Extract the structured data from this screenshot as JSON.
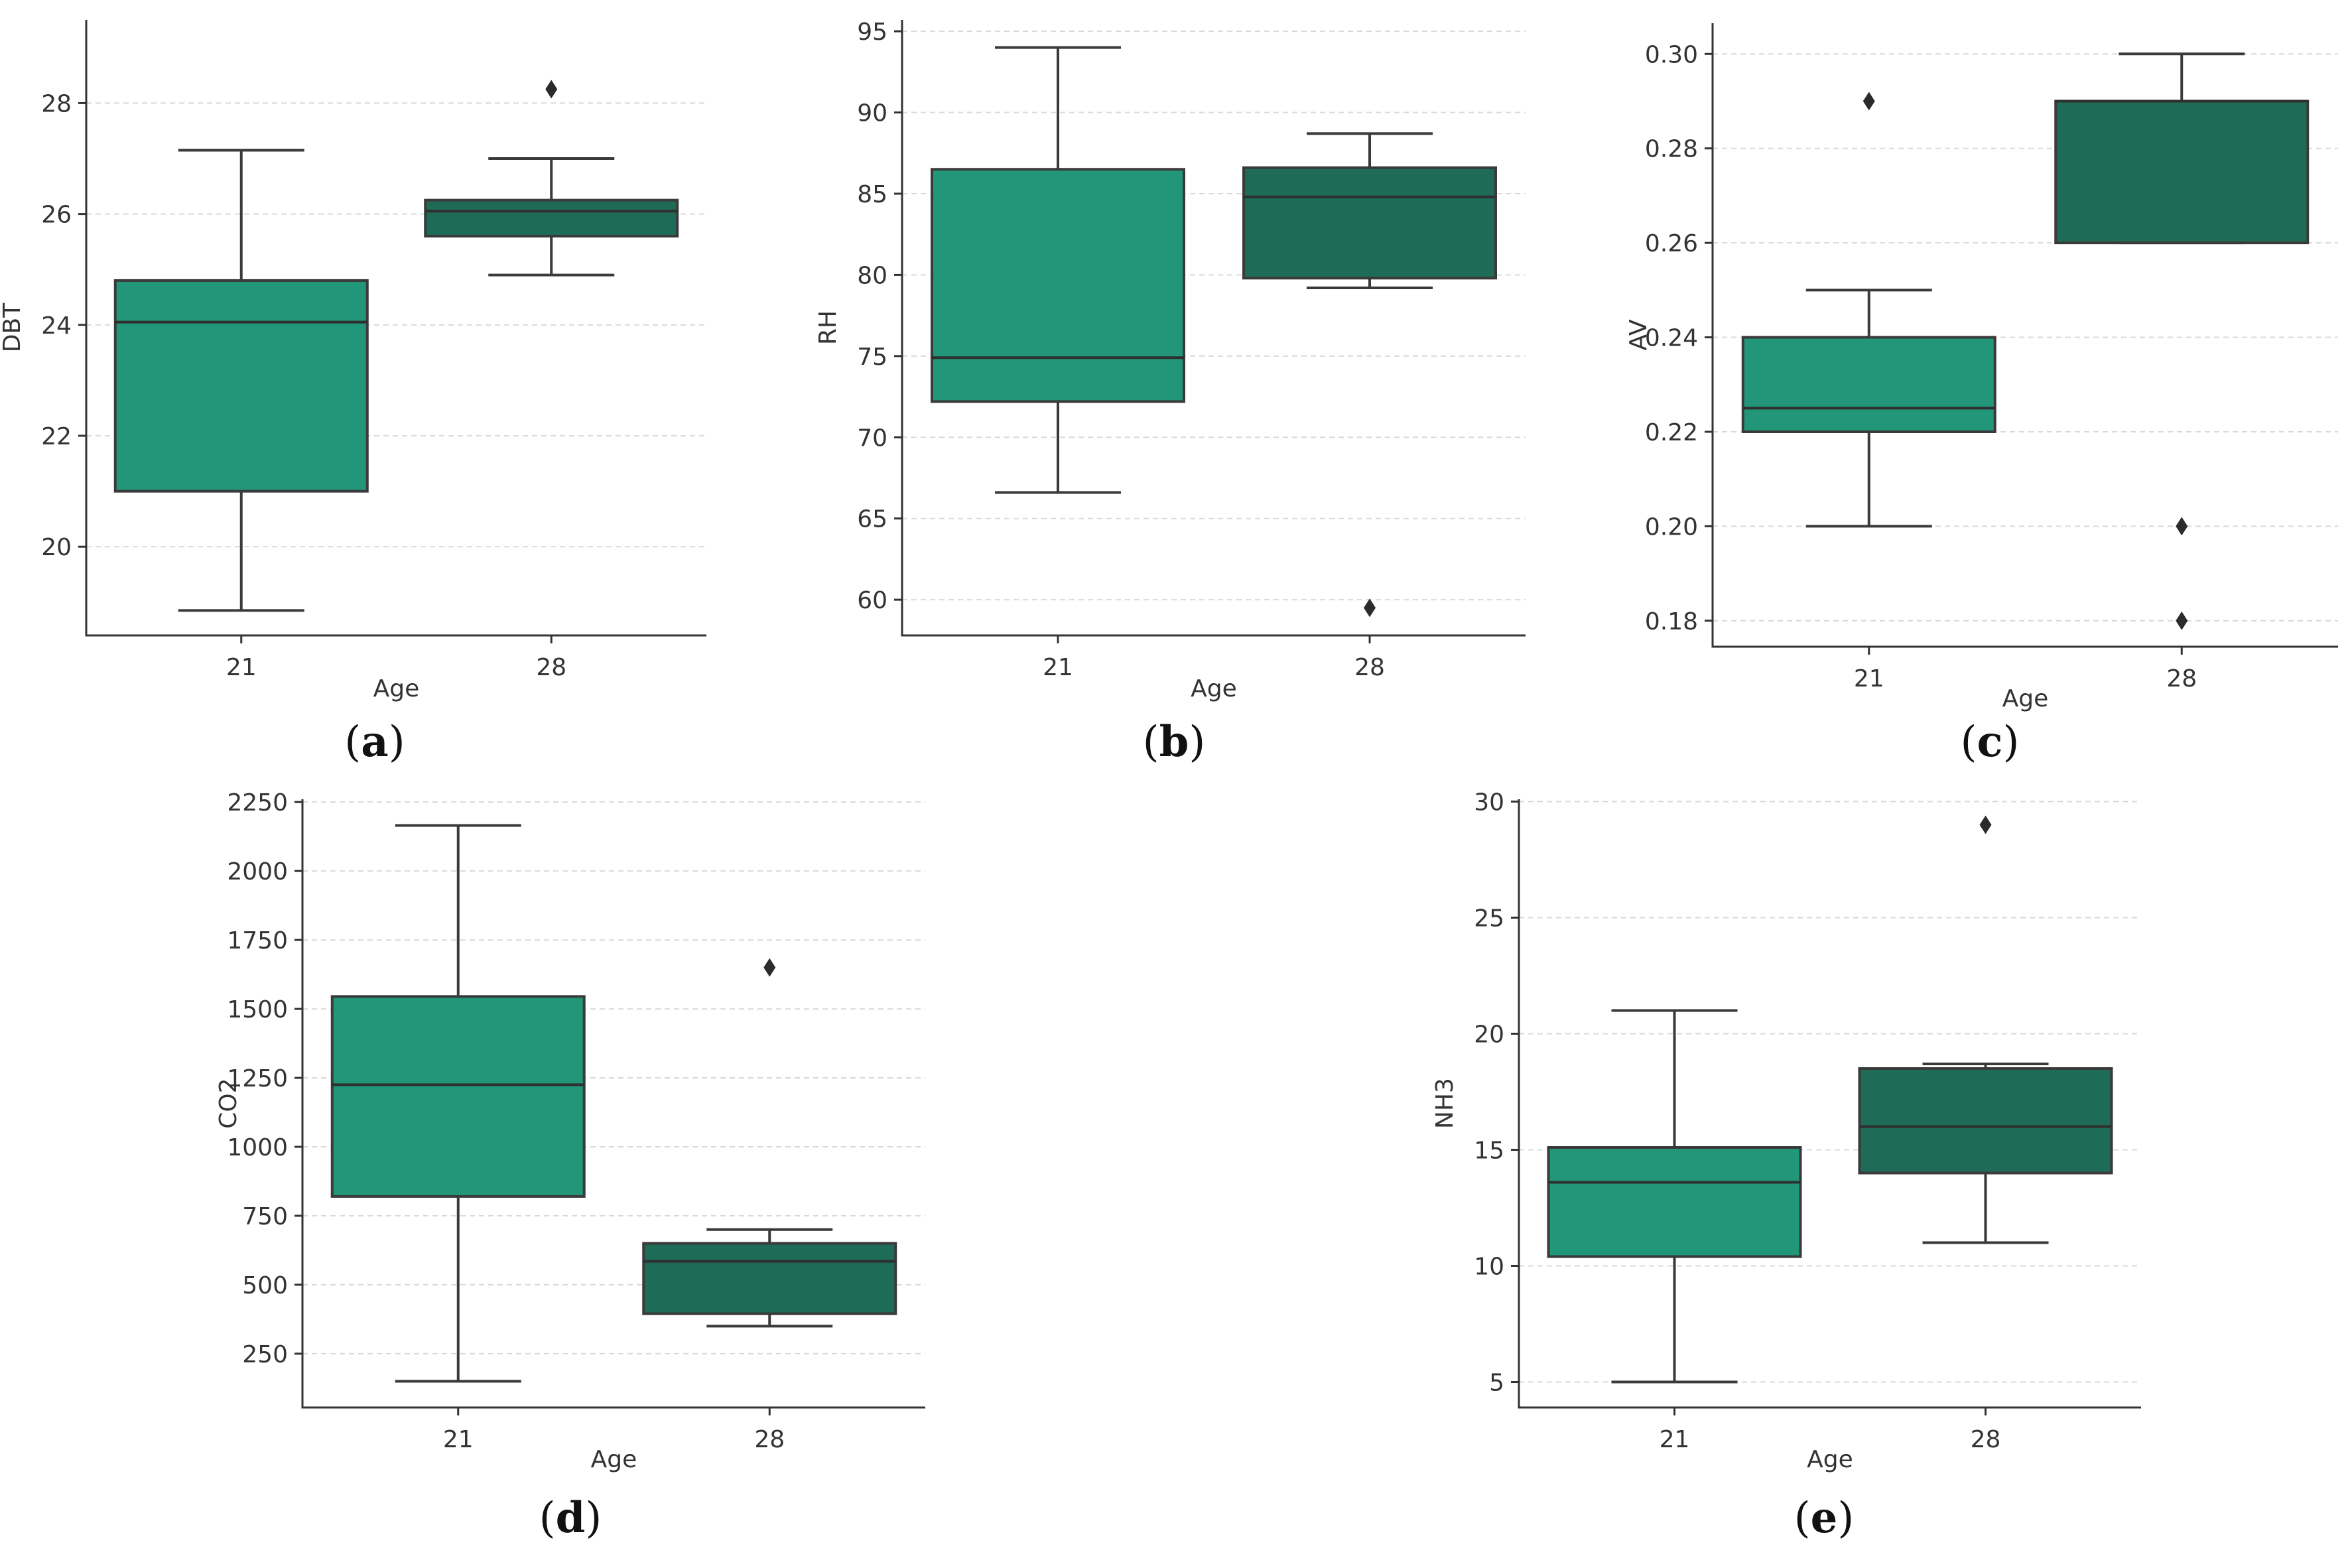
{
  "colors": {
    "age21": "#219678",
    "age28": "#1e6b58",
    "line": "#3a3a3a"
  },
  "chart_data": [
    {
      "type": "box",
      "panel_label": "a",
      "xlabel": "Age",
      "ylabel": "DBT",
      "categories": [
        "21",
        "28"
      ],
      "ylim": [
        18.4,
        29.5
      ],
      "yticks": [
        20,
        22,
        24,
        26,
        28
      ],
      "boxes": [
        {
          "category": "21",
          "min": 18.85,
          "q1": 21.0,
          "median": 24.05,
          "q3": 24.8,
          "max": 27.15,
          "fliers": []
        },
        {
          "category": "28",
          "min": 24.9,
          "q1": 25.6,
          "median": 26.05,
          "q3": 26.25,
          "max": 27.0,
          "fliers": [
            28.25
          ]
        }
      ]
    },
    {
      "type": "box",
      "panel_label": "b",
      "xlabel": "Age",
      "ylabel": "RH",
      "categories": [
        "21",
        "28"
      ],
      "ylim": [
        57.8,
        95.7
      ],
      "yticks": [
        60,
        65,
        70,
        75,
        80,
        85,
        90,
        95
      ],
      "boxes": [
        {
          "category": "21",
          "min": 66.6,
          "q1": 72.2,
          "median": 74.9,
          "q3": 86.5,
          "max": 94.0,
          "fliers": []
        },
        {
          "category": "28",
          "min": 79.2,
          "q1": 79.8,
          "median": 84.8,
          "q3": 86.6,
          "max": 88.7,
          "fliers": [
            59.5
          ]
        }
      ]
    },
    {
      "type": "box",
      "panel_label": "c",
      "xlabel": "Age",
      "ylabel": "AV",
      "categories": [
        "21",
        "28"
      ],
      "ylim": [
        0.1745,
        0.3065
      ],
      "yticks": [
        0.18,
        0.2,
        0.22,
        0.24,
        0.26,
        0.28,
        0.3
      ],
      "ytick_labels": [
        "0.18",
        "0.20",
        "0.22",
        "0.24",
        "0.26",
        "0.28",
        "0.30"
      ],
      "boxes": [
        {
          "category": "21",
          "min": 0.2,
          "q1": 0.22,
          "median": 0.225,
          "q3": 0.24,
          "max": 0.25,
          "fliers": [
            0.29
          ]
        },
        {
          "category": "28",
          "min": 0.26,
          "q1": 0.26,
          "median": 0.29,
          "q3": 0.29,
          "max": 0.3,
          "fliers": [
            0.2,
            0.18
          ]
        }
      ]
    },
    {
      "type": "box",
      "panel_label": "d",
      "xlabel": "Age",
      "ylabel": "CO2",
      "categories": [
        "21",
        "28"
      ],
      "ylim": [
        55,
        2260
      ],
      "yticks": [
        250,
        500,
        750,
        1000,
        1250,
        1500,
        1750,
        2000,
        2250
      ],
      "boxes": [
        {
          "category": "21",
          "min": 150,
          "q1": 820,
          "median": 1225,
          "q3": 1545,
          "max": 2165,
          "fliers": []
        },
        {
          "category": "28",
          "min": 350,
          "q1": 395,
          "median": 585,
          "q3": 650,
          "max": 700,
          "fliers": [
            1650
          ]
        }
      ]
    },
    {
      "type": "box",
      "panel_label": "e",
      "xlabel": "Age",
      "ylabel": "NH3",
      "categories": [
        "21",
        "28"
      ],
      "ylim": [
        3.9,
        30.1
      ],
      "yticks": [
        5,
        10,
        15,
        20,
        25,
        30
      ],
      "boxes": [
        {
          "category": "21",
          "min": 5.0,
          "q1": 10.4,
          "median": 13.6,
          "q3": 15.1,
          "max": 21.0,
          "fliers": []
        },
        {
          "category": "28",
          "min": 11.0,
          "q1": 14.0,
          "median": 16.0,
          "q3": 18.5,
          "max": 18.7,
          "fliers": [
            29.0
          ]
        }
      ]
    }
  ]
}
